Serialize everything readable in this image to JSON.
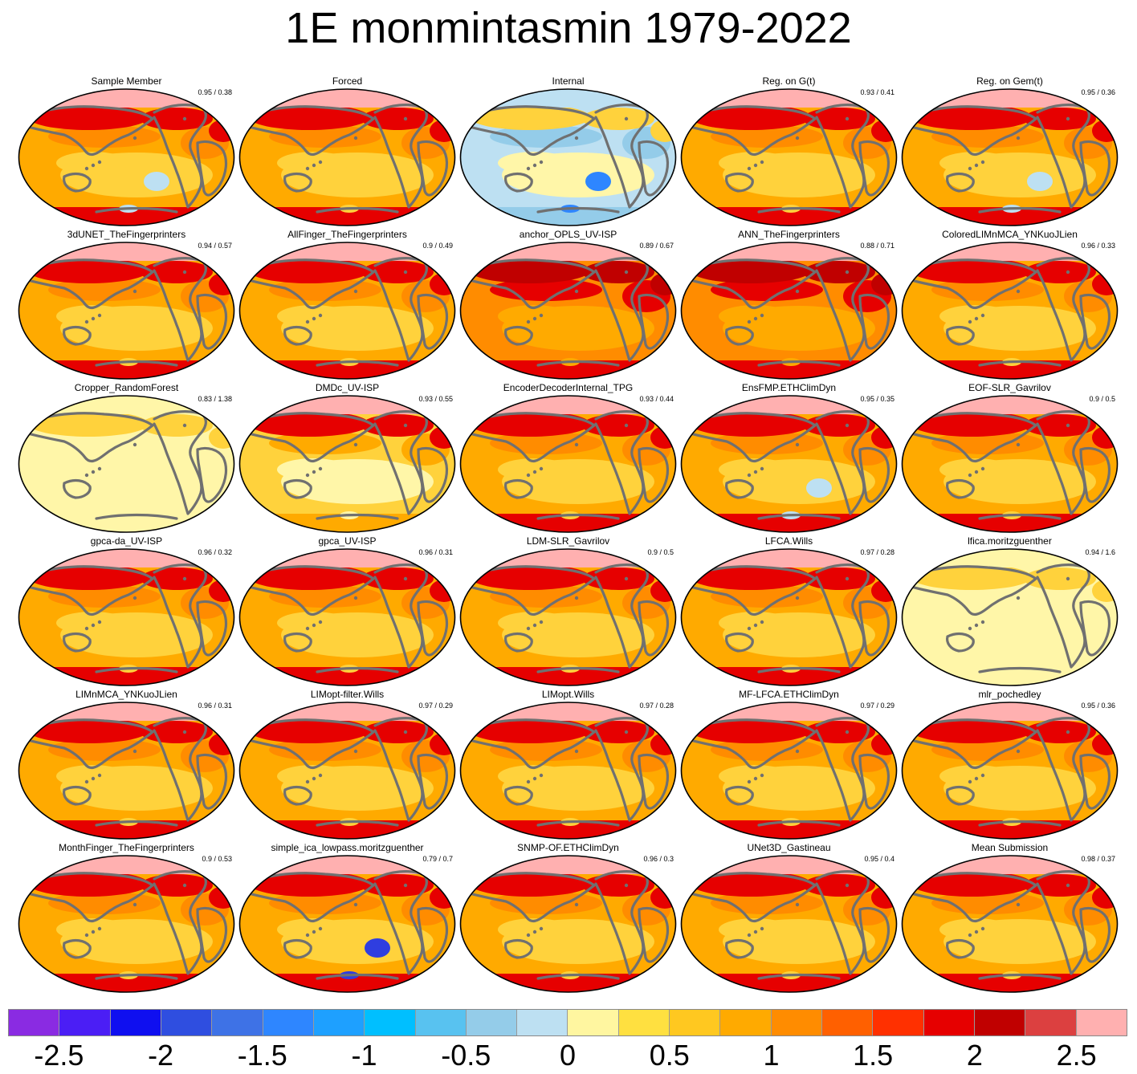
{
  "title": "1E monmintasmin 1979-2022",
  "panels": [
    {
      "name": "Sample Member",
      "stat": "0.95 / 0.38",
      "style": "mixed"
    },
    {
      "name": "Forced",
      "stat": "",
      "style": "warm"
    },
    {
      "name": "Internal",
      "stat": "",
      "style": "internal"
    },
    {
      "name": "Reg. on G(t)",
      "stat": "0.93 / 0.41",
      "style": "warm"
    },
    {
      "name": "Reg. on Gem(t)",
      "stat": "0.95 / 0.36",
      "style": "mixed"
    },
    {
      "name": "3dUNET_TheFingerprinters",
      "stat": "0.94 / 0.57",
      "style": "warm"
    },
    {
      "name": "AllFinger_TheFingerprinters",
      "stat": "0.9 / 0.49",
      "style": "warm"
    },
    {
      "name": "anchor_OPLS_UV-ISP",
      "stat": "0.89 / 0.67",
      "style": "hot"
    },
    {
      "name": "ANN_TheFingerprinters",
      "stat": "0.88 / 0.71",
      "style": "hot"
    },
    {
      "name": "ColoredLIMnMCA_YNKuoJLien",
      "stat": "0.96 / 0.33",
      "style": "warm"
    },
    {
      "name": "Cropper_RandomForest",
      "stat": "0.83 / 1.38",
      "style": "pale"
    },
    {
      "name": "DMDc_UV-ISP",
      "stat": "0.93 / 0.55",
      "style": "mild"
    },
    {
      "name": "EncoderDecoderInternal_TPG",
      "stat": "0.93 / 0.44",
      "style": "warm"
    },
    {
      "name": "EnsFMP.ETHClimDyn",
      "stat": "0.95 / 0.35",
      "style": "mixed"
    },
    {
      "name": "EOF-SLR_Gavrilov",
      "stat": "0.9 / 0.5",
      "style": "warm"
    },
    {
      "name": "gpca-da_UV-ISP",
      "stat": "0.96 / 0.32",
      "style": "warm"
    },
    {
      "name": "gpca_UV-ISP",
      "stat": "0.96 / 0.31",
      "style": "warm"
    },
    {
      "name": "LDM-SLR_Gavrilov",
      "stat": "0.9 / 0.5",
      "style": "warm"
    },
    {
      "name": "LFCA.Wills",
      "stat": "0.97 / 0.28",
      "style": "warm"
    },
    {
      "name": "lfica.moritzguenther",
      "stat": "0.94 / 1.6",
      "style": "pale"
    },
    {
      "name": "LIMnMCA_YNKuoJLien",
      "stat": "0.96 / 0.31",
      "style": "warm"
    },
    {
      "name": "LIMopt-filter.Wills",
      "stat": "0.97 / 0.29",
      "style": "warm"
    },
    {
      "name": "LIMopt.Wills",
      "stat": "0.97 / 0.28",
      "style": "warm"
    },
    {
      "name": "MF-LFCA.ETHClimDyn",
      "stat": "0.97 / 0.29",
      "style": "warm"
    },
    {
      "name": "mlr_pochedley",
      "stat": "0.95 / 0.36",
      "style": "warm"
    },
    {
      "name": "MonthFinger_TheFingerprinters",
      "stat": "0.9 / 0.53",
      "style": "warm"
    },
    {
      "name": "simple_ica_lowpass.moritzguenther",
      "stat": "0.79 / 0.7",
      "style": "noisy"
    },
    {
      "name": "SNMP-OF.ETHClimDyn",
      "stat": "0.96 / 0.3",
      "style": "warm"
    },
    {
      "name": "UNet3D_Gastineau",
      "stat": "0.95 / 0.4",
      "style": "warm"
    },
    {
      "name": "Mean Submission",
      "stat": "0.98 / 0.37",
      "style": "warm"
    }
  ],
  "colorbar": {
    "colors": [
      "#8a2be2",
      "#4b1ef5",
      "#0f0ff0",
      "#2f4ee0",
      "#3e72e6",
      "#2e86ff",
      "#1ea0ff",
      "#00bfff",
      "#58c2f0",
      "#94cce9",
      "#bde0f2",
      "#fff6a0",
      "#ffe040",
      "#ffc820",
      "#ffaa00",
      "#ff8c00",
      "#ff6000",
      "#ff3000",
      "#e60000",
      "#c00000",
      "#dc4040",
      "#ffb0b0"
    ],
    "labels": [
      "-2.5",
      "-2",
      "-1.5",
      "-1",
      "-0.5",
      "0",
      "0.5",
      "1",
      "1.5",
      "2",
      "2.5"
    ]
  },
  "palette": {
    "ocean_yellow": "#ffd23c",
    "ocean_orange": "#ffaa00",
    "deep_orange": "#ff8c00",
    "red": "#e60000",
    "dark_red": "#c00000",
    "arctic_pink": "#ffb0b0",
    "land": "#707070",
    "pale_yellow": "#fff6a8",
    "light_blue": "#bde0f2",
    "mid_blue": "#94cce9",
    "blue": "#2e86ff",
    "deep_blue": "#2f3ee0"
  }
}
